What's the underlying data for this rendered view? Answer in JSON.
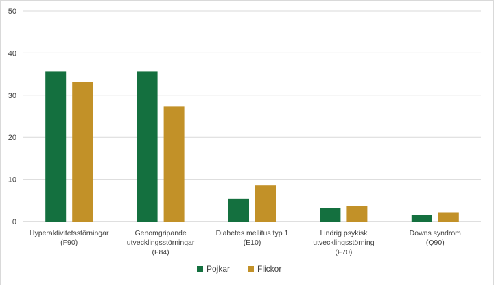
{
  "chart_data": {
    "type": "bar",
    "categories": [
      [
        "Hyperaktivitetsstörningar",
        "(F90)"
      ],
      [
        "Genomgripande",
        "utvecklingsstörningar",
        "(F84)"
      ],
      [
        "Diabetes mellitus typ 1",
        "(E10)"
      ],
      [
        "Lindrig psykisk",
        "utvecklingsstörning",
        "(F70)"
      ],
      [
        "Downs syndrom",
        "(Q90)"
      ]
    ],
    "series": [
      {
        "name": "Pojkar",
        "color": "#14703f",
        "values": [
          35.6,
          35.6,
          5.4,
          3.1,
          1.6
        ]
      },
      {
        "name": "Flickor",
        "color": "#c29128",
        "values": [
          33.1,
          27.3,
          8.6,
          3.7,
          2.2
        ]
      }
    ],
    "yticks": [
      0,
      10,
      20,
      30,
      40,
      50
    ],
    "ylim": [
      0,
      50
    ],
    "grid": true,
    "legend_position": "bottom",
    "title": "",
    "xlabel": "",
    "ylabel": ""
  }
}
